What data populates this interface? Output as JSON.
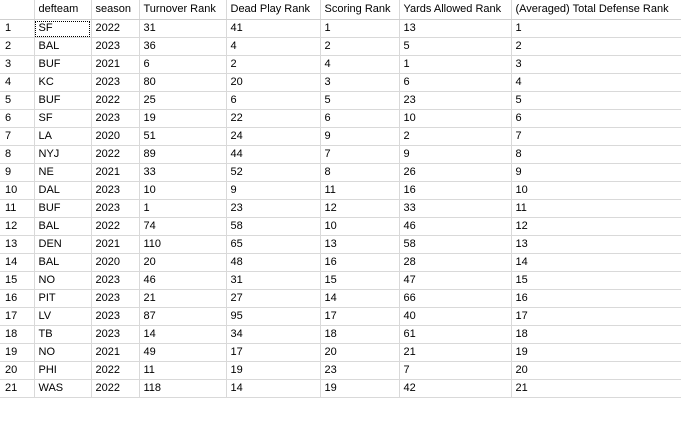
{
  "columns": [
    "",
    "defteam",
    "season",
    "Turnover Rank",
    "Dead Play Rank",
    "Scoring Rank",
    "Yards Allowed Rank",
    "(Averaged) Total Defense Rank"
  ],
  "rows": [
    [
      "1",
      "SF",
      "2022",
      "31",
      "41",
      "1",
      "13",
      "1"
    ],
    [
      "2",
      "BAL",
      "2023",
      "36",
      "4",
      "2",
      "5",
      "2"
    ],
    [
      "3",
      "BUF",
      "2021",
      "6",
      "2",
      "4",
      "1",
      "3"
    ],
    [
      "4",
      "KC",
      "2023",
      "80",
      "20",
      "3",
      "6",
      "4"
    ],
    [
      "5",
      "BUF",
      "2022",
      "25",
      "6",
      "5",
      "23",
      "5"
    ],
    [
      "6",
      "SF",
      "2023",
      "19",
      "22",
      "6",
      "10",
      "6"
    ],
    [
      "7",
      "LA",
      "2020",
      "51",
      "24",
      "9",
      "2",
      "7"
    ],
    [
      "8",
      "NYJ",
      "2022",
      "89",
      "44",
      "7",
      "9",
      "8"
    ],
    [
      "9",
      "NE",
      "2021",
      "33",
      "52",
      "8",
      "26",
      "9"
    ],
    [
      "10",
      "DAL",
      "2023",
      "10",
      "9",
      "11",
      "16",
      "10"
    ],
    [
      "11",
      "BUF",
      "2023",
      "1",
      "23",
      "12",
      "33",
      "11"
    ],
    [
      "12",
      "BAL",
      "2022",
      "74",
      "58",
      "10",
      "46",
      "12"
    ],
    [
      "13",
      "DEN",
      "2021",
      "110",
      "65",
      "13",
      "58",
      "13"
    ],
    [
      "14",
      "BAL",
      "2020",
      "20",
      "48",
      "16",
      "28",
      "14"
    ],
    [
      "15",
      "NO",
      "2023",
      "46",
      "31",
      "15",
      "47",
      "15"
    ],
    [
      "16",
      "PIT",
      "2023",
      "21",
      "27",
      "14",
      "66",
      "16"
    ],
    [
      "17",
      "LV",
      "2023",
      "87",
      "95",
      "17",
      "40",
      "17"
    ],
    [
      "18",
      "TB",
      "2023",
      "14",
      "34",
      "18",
      "61",
      "18"
    ],
    [
      "19",
      "NO",
      "2021",
      "49",
      "17",
      "20",
      "21",
      "19"
    ],
    [
      "20",
      "PHI",
      "2022",
      "11",
      "19",
      "23",
      "7",
      "20"
    ],
    [
      "21",
      "WAS",
      "2022",
      "118",
      "14",
      "19",
      "42",
      "21"
    ]
  ],
  "selected_row": 0,
  "colors": {
    "gridline": "#d9d9d9",
    "background": "#ffffff",
    "text": "#000000"
  }
}
